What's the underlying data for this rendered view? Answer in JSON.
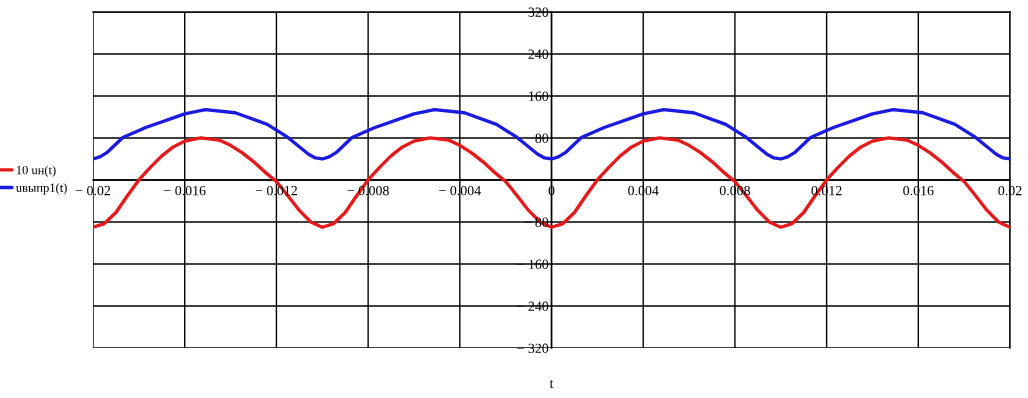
{
  "chart_data": {
    "type": "line",
    "xlabel": "t",
    "legend": "left",
    "grid": true,
    "marker": "none",
    "line_style": "solid",
    "xlim": [
      -0.02,
      0.02
    ],
    "xticks": [
      {
        "value": -0.02,
        "label": "− 0.02"
      },
      {
        "value": -0.016,
        "label": "− 0.016"
      },
      {
        "value": -0.012,
        "label": "− 0.012"
      },
      {
        "value": -0.008,
        "label": "− 0.008"
      },
      {
        "value": -0.004,
        "label": "− 0.004"
      },
      0,
      0.004,
      0.008,
      0.012,
      0.016,
      0.02
    ],
    "ylim": [
      -320,
      320
    ],
    "yticks": [
      {
        "value": -320,
        "label": "− 320"
      },
      {
        "value": -240,
        "label": "− 240"
      },
      {
        "value": -160,
        "label": "− 160"
      },
      {
        "value": -80,
        "label": "− 80"
      },
      {
        "value": 0,
        "label": null
      },
      80,
      160,
      240,
      320
    ],
    "series": [
      {
        "name": "10 uн(t)",
        "color": "#e41a1a",
        "x": [
          -0.02,
          -0.0195,
          -0.019,
          -0.0185,
          -0.018,
          -0.0175,
          -0.017,
          -0.0165,
          -0.016,
          -0.0153,
          -0.0145,
          -0.014,
          -0.0135,
          -0.013,
          -0.0125,
          -0.012,
          -0.0115,
          -0.011,
          -0.0105,
          -0.01,
          -0.0095,
          -0.009,
          -0.0085,
          -0.008,
          -0.0075,
          -0.007,
          -0.0065,
          -0.006,
          -0.0053,
          -0.0045,
          -0.004,
          -0.0035,
          -0.003,
          -0.0025,
          -0.002,
          -0.0015,
          -0.001,
          -0.0005,
          0,
          0.0005,
          0.001,
          0.0015,
          0.002,
          0.0025,
          0.003,
          0.0035,
          0.004,
          0.0047,
          0.0055,
          0.006,
          0.0065,
          0.007,
          0.0075,
          0.008,
          0.0085,
          0.009,
          0.0095,
          0.01,
          0.0105,
          0.011,
          0.0115,
          0.012,
          0.0125,
          0.013,
          0.0135,
          0.014,
          0.0147,
          0.0155,
          0.016,
          0.0165,
          0.017,
          0.0175,
          0.018,
          0.0185,
          0.019,
          0.0195,
          0.02
        ],
        "values": [
          -90,
          -83,
          -62,
          -30,
          0,
          24,
          46,
          63,
          74,
          80,
          76,
          66,
          52,
          35,
          15,
          -3,
          -30,
          -58,
          -80,
          -90,
          -83,
          -62,
          -30,
          0,
          24,
          46,
          63,
          74,
          80,
          76,
          66,
          52,
          35,
          15,
          -3,
          -30,
          -58,
          -80,
          -90,
          -83,
          -62,
          -30,
          0,
          24,
          46,
          63,
          74,
          80,
          76,
          66,
          52,
          35,
          15,
          -3,
          -30,
          -58,
          -80,
          -90,
          -83,
          -62,
          -30,
          0,
          24,
          46,
          63,
          74,
          80,
          76,
          66,
          52,
          35,
          15,
          -3,
          -30,
          -58,
          -80,
          -90
        ]
      },
      {
        "name": "uвыпр1(t)",
        "color": "#1a1ae0",
        "x": [
          -0.02,
          -0.0197,
          -0.0194,
          -0.0187,
          -0.0177,
          -0.016,
          -0.0151,
          -0.0138,
          -0.0124,
          -0.0115,
          -0.0106,
          -0.0103,
          -0.01,
          -0.0097,
          -0.0094,
          -0.0087,
          -0.0077,
          -0.006,
          -0.0051,
          -0.0038,
          -0.0024,
          -0.0015,
          -0.0006,
          -0.0003,
          0,
          0.0003,
          0.0006,
          0.0013,
          0.0023,
          0.004,
          0.0049,
          0.0062,
          0.0076,
          0.0085,
          0.0094,
          0.0097,
          0.01,
          0.0103,
          0.0106,
          0.0113,
          0.0123,
          0.014,
          0.0149,
          0.0162,
          0.0176,
          0.0185,
          0.0194,
          0.0197,
          0.02
        ],
        "values": [
          40,
          44,
          52,
          81,
          100,
          126,
          134,
          128,
          106,
          81,
          49,
          42,
          40,
          44,
          52,
          81,
          100,
          126,
          134,
          128,
          106,
          81,
          49,
          42,
          40,
          44,
          52,
          81,
          100,
          126,
          134,
          128,
          106,
          81,
          49,
          42,
          40,
          44,
          52,
          81,
          100,
          126,
          134,
          128,
          106,
          81,
          49,
          42,
          40
        ]
      }
    ]
  }
}
